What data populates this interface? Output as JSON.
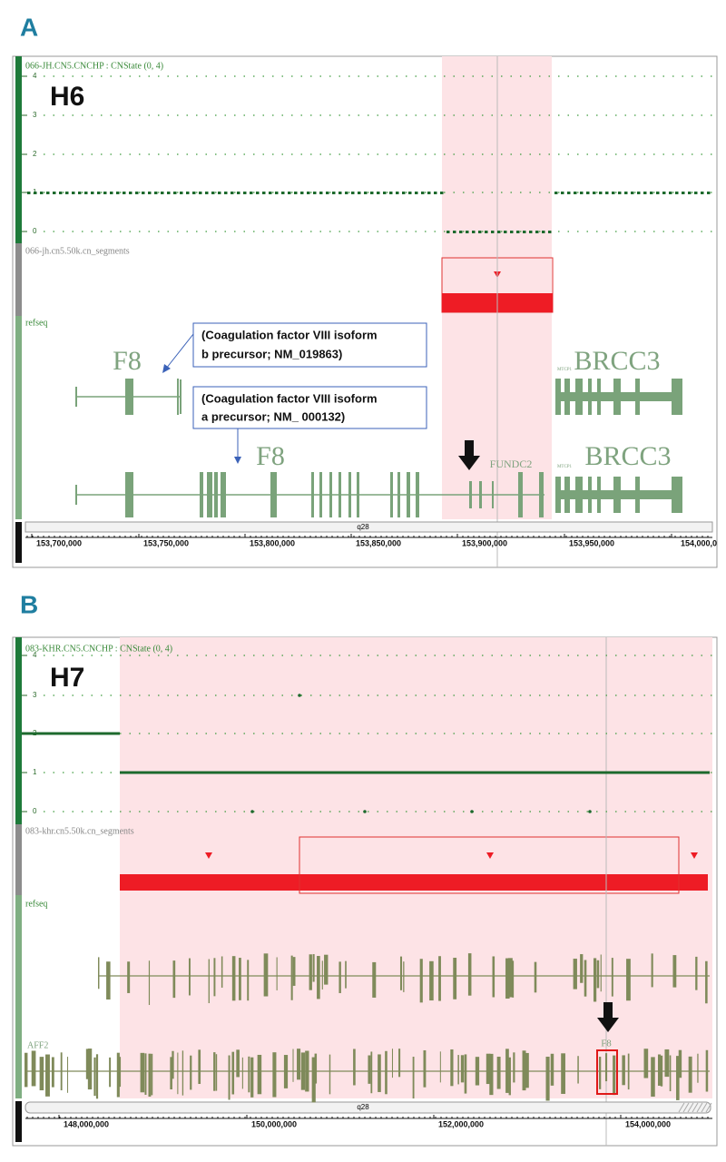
{
  "panels": [
    {
      "label": "A",
      "sample": "H6",
      "cn_track": "066-JH.CN5.CNCHP : CNState (0, 4)",
      "cn_ticks": [
        "4",
        "3",
        "2",
        "1",
        "0"
      ],
      "segment_track": "066-jh.cn5.50k.cn_segments",
      "refseq_track": "refseq",
      "genes": [
        "F8",
        "BRCC3",
        "F8",
        "FUNDC2",
        "BRCC3",
        "MTCP1",
        "MTCP1"
      ],
      "callouts": [
        "(Coagulation factor VIII isoform",
        "b precursor; NM_019863)",
        "(Coagulation factor VIII isoform",
        "a precursor; NM_ 000132)"
      ],
      "band": "q28",
      "axis_ticks": [
        "153,700,000",
        "153,750,000",
        "153,800,000",
        "153,850,000",
        "153,900,000",
        "153,950,000",
        "154,000,0"
      ]
    },
    {
      "label": "B",
      "sample": "H7",
      "cn_track": "083-KHR.CN5.CNCHP : CNState (0, 4)",
      "cn_ticks": [
        "4",
        "3",
        "2",
        "1",
        "0"
      ],
      "segment_track": "083-khr.cn5.50k.cn_segments",
      "refseq_track": "refseq",
      "genes": [
        "AFF2",
        "F8"
      ],
      "band": "q28",
      "axis_ticks": [
        "148,000,000",
        "150,000,000",
        "152,000,000",
        "154,000,000"
      ]
    }
  ]
}
